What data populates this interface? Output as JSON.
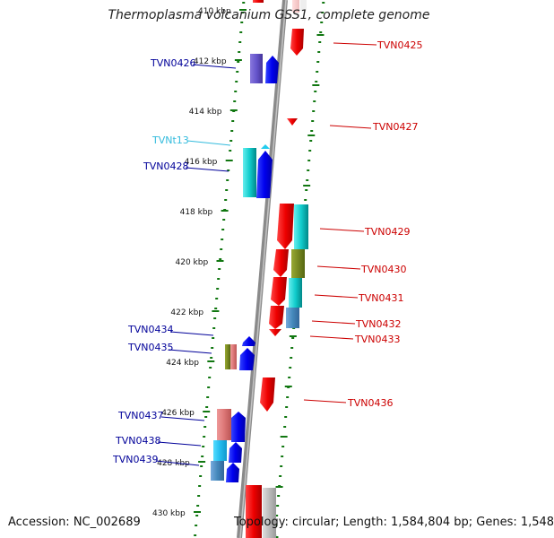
{
  "title": "Thermoplasma volcanium GSS1, complete genome",
  "accession_text": "Accession: NC_002689",
  "topology_text": "Topology: circular; Length: 1,584,804 bp; Genes: 1,548",
  "kbp_ticks": [
    {
      "label": "410 kbp",
      "kbp": 410
    },
    {
      "label": "412 kbp",
      "kbp": 412
    },
    {
      "label": "414 kbp",
      "kbp": 414
    },
    {
      "label": "416 kbp",
      "kbp": 416
    },
    {
      "label": "418 kbp",
      "kbp": 418
    },
    {
      "label": "420 kbp",
      "kbp": 420
    },
    {
      "label": "422 kbp",
      "kbp": 422
    },
    {
      "label": "424 kbp",
      "kbp": 424
    },
    {
      "label": "426 kbp",
      "kbp": 426
    },
    {
      "label": "428 kbp",
      "kbp": 428
    },
    {
      "label": "430 kbp",
      "kbp": 430
    }
  ],
  "gene_labels": [
    {
      "id": "TVN0425",
      "strand": "forward"
    },
    {
      "id": "TVN0426",
      "strand": "reverse"
    },
    {
      "id": "TVN0427",
      "strand": "forward"
    },
    {
      "id": "TVNt13",
      "strand": "reverse"
    },
    {
      "id": "TVN0428",
      "strand": "reverse"
    },
    {
      "id": "TVN0429",
      "strand": "forward"
    },
    {
      "id": "TVN0430",
      "strand": "forward"
    },
    {
      "id": "TVN0431",
      "strand": "forward"
    },
    {
      "id": "TVN0432",
      "strand": "forward"
    },
    {
      "id": "TVN0433",
      "strand": "forward"
    },
    {
      "id": "TVN0434",
      "strand": "reverse"
    },
    {
      "id": "TVN0435",
      "strand": "reverse"
    },
    {
      "id": "TVN0436",
      "strand": "forward"
    },
    {
      "id": "TVN0437",
      "strand": "reverse"
    },
    {
      "id": "TVN0438",
      "strand": "reverse"
    },
    {
      "id": "TVN0439",
      "strand": "reverse"
    }
  ],
  "colors": {
    "forward_label": "#cc0000",
    "reverse_label": "#000099",
    "trna_label": "#33bbdd",
    "forward_gene": "#ee0000",
    "reverse_gene": "#0000ee",
    "backbone": "#808080",
    "tick": "#117711"
  }
}
